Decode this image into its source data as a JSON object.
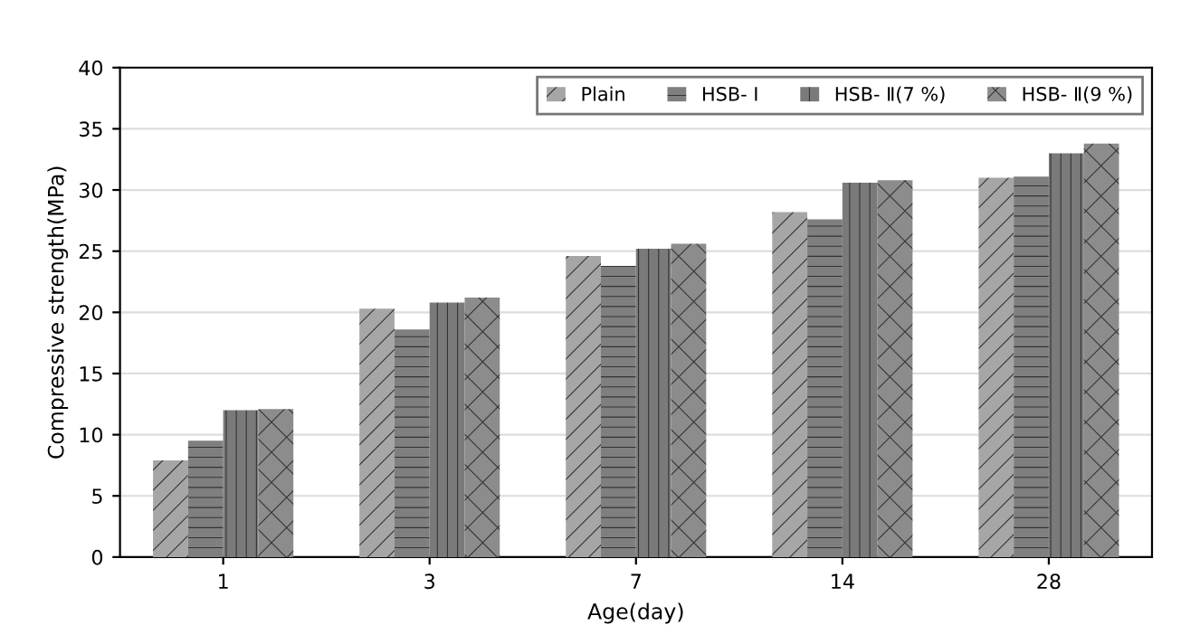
{
  "chart_data": {
    "type": "bar",
    "xlabel": "Age(day)",
    "ylabel": "Compressive strength(MPa)",
    "categories": [
      "1",
      "3",
      "7",
      "14",
      "28"
    ],
    "series": [
      {
        "name": "Plain",
        "color": "#a6a6a6",
        "values": [
          7.9,
          20.3,
          24.6,
          28.2,
          31.0
        ]
      },
      {
        "name": "HSB- Ⅰ",
        "color": "#7f7f7f",
        "values": [
          9.5,
          18.6,
          23.8,
          27.6,
          31.1
        ]
      },
      {
        "name": "HSB- Ⅱ(7 %)",
        "color": "#7a7a7a",
        "values": [
          12.0,
          20.8,
          25.2,
          30.6,
          33.0
        ]
      },
      {
        "name": "HSB- Ⅱ(9 %)",
        "color": "#8c8c8c",
        "values": [
          12.1,
          21.2,
          25.6,
          30.8,
          33.8
        ]
      }
    ],
    "ylim": [
      0,
      40
    ],
    "yticks": [
      0,
      5,
      10,
      15,
      20,
      25,
      30,
      35,
      40
    ],
    "grid": "y",
    "legend": "top right"
  }
}
